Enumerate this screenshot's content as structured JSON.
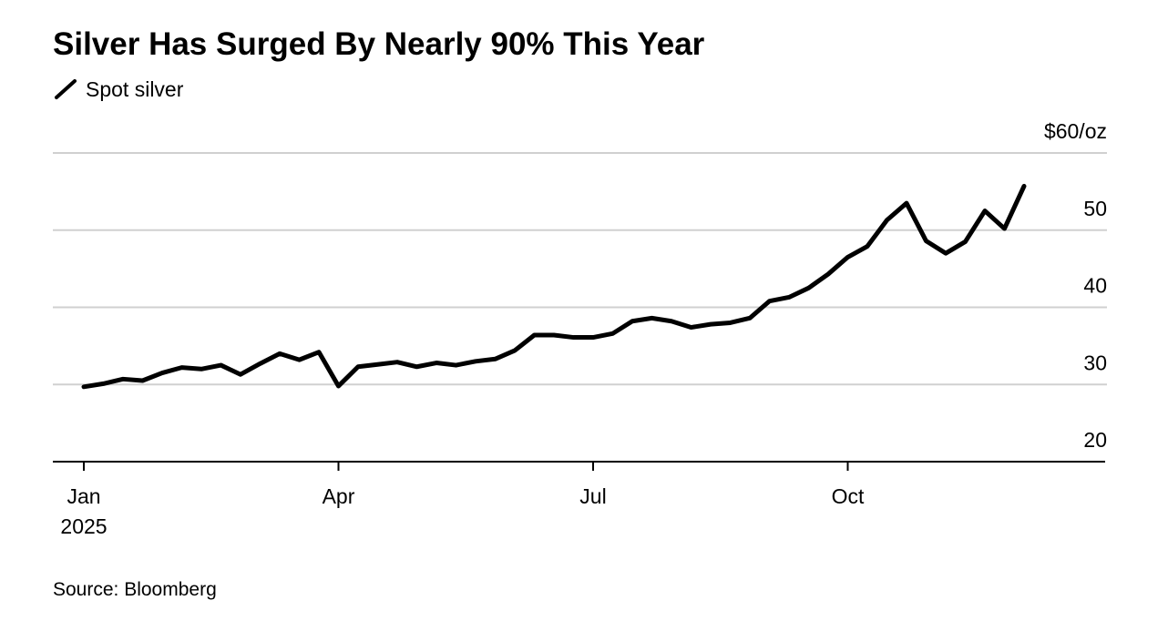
{
  "chart_data": {
    "type": "line",
    "title": "Silver Has Surged By Nearly 90% This Year",
    "source": "Source: Bloomberg",
    "year_label": "2025",
    "categories": [
      "Jan",
      null,
      null,
      null,
      null,
      null,
      null,
      null,
      null,
      null,
      null,
      null,
      null,
      "Apr",
      null,
      null,
      null,
      null,
      null,
      null,
      null,
      null,
      null,
      null,
      null,
      null,
      "Jul",
      null,
      null,
      null,
      null,
      null,
      null,
      null,
      null,
      null,
      null,
      null,
      null,
      "Oct",
      null,
      null,
      null,
      null,
      null,
      null,
      null,
      null,
      null
    ],
    "series": [
      {
        "name": "Spot silver",
        "color": "#000000",
        "values": [
          29.7,
          30.1,
          30.7,
          30.5,
          31.5,
          32.2,
          32.0,
          32.5,
          31.3,
          32.7,
          34.0,
          33.2,
          34.2,
          29.8,
          32.3,
          32.6,
          32.9,
          32.3,
          32.8,
          32.5,
          33.0,
          33.3,
          34.4,
          36.4,
          36.4,
          36.1,
          36.1,
          36.6,
          38.2,
          38.6,
          38.2,
          37.4,
          37.8,
          38.0,
          38.6,
          40.8,
          41.3,
          42.5,
          44.3,
          46.5,
          47.9,
          51.3,
          53.5,
          48.6,
          47.0,
          48.5,
          52.5,
          50.2,
          55.7
        ]
      }
    ],
    "ylim": [
      20,
      60
    ],
    "yticks": [
      20,
      30,
      40,
      50,
      {
        "value": 60,
        "label": "$60/oz"
      }
    ],
    "grid": true
  }
}
